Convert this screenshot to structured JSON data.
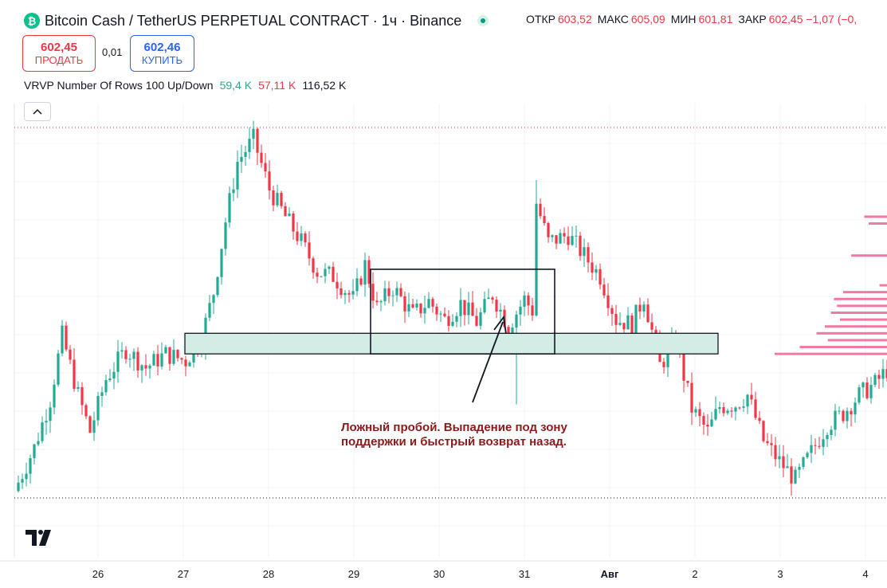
{
  "header": {
    "logo_letter": "₿",
    "title": "Bitcoin Cash / TetherUS PERPETUAL CONTRACT · 1ч · Binance",
    "ohlc": [
      {
        "key": "ОТКР",
        "value": "603,52"
      },
      {
        "key": "МАКС",
        "value": "605,09"
      },
      {
        "key": "МИН",
        "value": "601,81"
      },
      {
        "key": "ЗАКР",
        "value": "602,45 −1,07 (−0,"
      }
    ]
  },
  "trade": {
    "sell_price": "602,45",
    "sell_label": "ПРОДАТЬ",
    "spread": "0,01",
    "buy_price": "602,46",
    "buy_label": "КУПИТЬ"
  },
  "indicator": {
    "name": "VRVP Number Of Rows 100 Up/Down",
    "up": "59,4 K",
    "down": "57,11 K",
    "total": "116,52 K"
  },
  "collapse_icon": "chevron-up-icon",
  "annotation": {
    "line1": "Ложный пробой. Выпадение под зону",
    "line2": "поддержки и быстрый возврат назад."
  },
  "colors": {
    "up": "#22ab94",
    "down": "#f23645",
    "zone_fill": "#d3ede6",
    "vp": "#f06a9a",
    "annotation": "#8b1a1a"
  },
  "chart_data": {
    "type": "candlestick",
    "x_tick_labels": [
      "26",
      "27",
      "28",
      "29",
      "30",
      "31",
      "Авг",
      "2",
      "3",
      "4"
    ],
    "support_zone": {
      "from": 601.6,
      "to": 602.5
    },
    "consolidation_box": {
      "from": 601.6,
      "to": 605.3
    },
    "close_path": [
      {
        "t": 0,
        "p": 595.6
      },
      {
        "t": 5,
        "p": 597.5
      },
      {
        "t": 9,
        "p": 599.6
      },
      {
        "t": 12,
        "p": 602.4
      },
      {
        "t": 16,
        "p": 599.8
      },
      {
        "t": 19,
        "p": 598.2
      },
      {
        "t": 23,
        "p": 600.5
      },
      {
        "t": 28,
        "p": 601.8
      },
      {
        "t": 33,
        "p": 601.0
      },
      {
        "t": 38,
        "p": 601.6
      },
      {
        "t": 43,
        "p": 601.3
      },
      {
        "t": 47,
        "p": 602.3
      },
      {
        "t": 50,
        "p": 604.3
      },
      {
        "t": 53,
        "p": 607.4
      },
      {
        "t": 56,
        "p": 610.0
      },
      {
        "t": 60,
        "p": 611.0
      },
      {
        "t": 64,
        "p": 608.8
      },
      {
        "t": 68,
        "p": 607.6
      },
      {
        "t": 72,
        "p": 606.5
      },
      {
        "t": 76,
        "p": 605.2
      },
      {
        "t": 80,
        "p": 605.0
      },
      {
        "t": 85,
        "p": 604.0
      },
      {
        "t": 88,
        "p": 605.5
      },
      {
        "t": 91,
        "p": 603.6
      },
      {
        "t": 95,
        "p": 604.5
      },
      {
        "t": 100,
        "p": 603.3
      },
      {
        "t": 104,
        "p": 603.9
      },
      {
        "t": 108,
        "p": 603.1
      },
      {
        "t": 112,
        "p": 603.8
      },
      {
        "t": 116,
        "p": 603.0
      },
      {
        "t": 120,
        "p": 604.2
      },
      {
        "t": 124,
        "p": 602.8
      },
      {
        "t": 128,
        "p": 604.0
      },
      {
        "t": 130,
        "p": 603.5
      },
      {
        "t": 131,
        "p": 608.2
      },
      {
        "t": 134,
        "p": 606.5
      },
      {
        "t": 139,
        "p": 606.8
      },
      {
        "t": 143,
        "p": 605.9
      },
      {
        "t": 147,
        "p": 605.0
      },
      {
        "t": 151,
        "p": 603.1
      },
      {
        "t": 155,
        "p": 602.9
      },
      {
        "t": 158,
        "p": 604.1
      },
      {
        "t": 162,
        "p": 601.1
      },
      {
        "t": 166,
        "p": 602.1
      },
      {
        "t": 170,
        "p": 599.2
      },
      {
        "t": 174,
        "p": 598.2
      },
      {
        "t": 177,
        "p": 599.3
      },
      {
        "t": 181,
        "p": 599.4
      },
      {
        "t": 184,
        "p": 599.8
      },
      {
        "t": 188,
        "p": 597.8
      },
      {
        "t": 192,
        "p": 596.9
      },
      {
        "t": 196,
        "p": 596.1
      },
      {
        "t": 200,
        "p": 597.3
      },
      {
        "t": 204,
        "p": 598.5
      },
      {
        "t": 208,
        "p": 599.0
      },
      {
        "t": 212,
        "p": 599.8
      },
      {
        "t": 216,
        "p": 600.3
      },
      {
        "t": 219,
        "p": 600.9
      }
    ],
    "volume_profile": [
      {
        "price": 607.6,
        "up": 14,
        "down": 16
      },
      {
        "price": 607.3,
        "up": 10,
        "down": 14
      },
      {
        "price": 605.9,
        "up": 22,
        "down": 25
      },
      {
        "price": 604.6,
        "up": 6,
        "down": 4
      },
      {
        "price": 604.3,
        "up": 30,
        "down": 28
      },
      {
        "price": 604.0,
        "up": 34,
        "down": 36
      },
      {
        "price": 603.7,
        "up": 32,
        "down": 34
      },
      {
        "price": 603.4,
        "up": 36,
        "down": 38
      },
      {
        "price": 603.1,
        "up": 30,
        "down": 32
      },
      {
        "price": 602.8,
        "up": 40,
        "down": 42
      },
      {
        "price": 602.5,
        "up": 45,
        "down": 48
      },
      {
        "price": 602.2,
        "up": 38,
        "down": 40
      },
      {
        "price": 601.9,
        "up": 55,
        "down": 60
      },
      {
        "price": 601.6,
        "up": 70,
        "down": 78
      }
    ]
  }
}
